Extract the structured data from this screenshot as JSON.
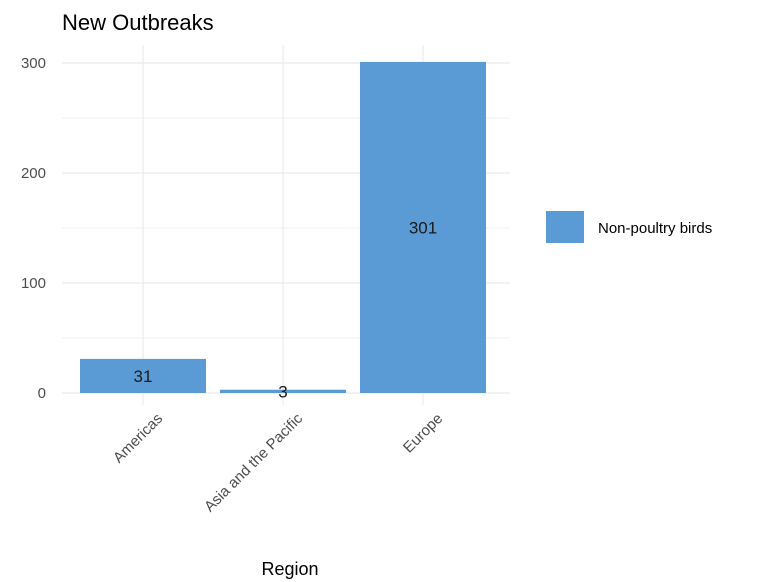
{
  "chart_data": {
    "type": "bar",
    "title": "New Outbreaks",
    "xlabel": "Region",
    "ylabel": "",
    "categories": [
      "Americas",
      "Asia and the Pacific",
      "Europe"
    ],
    "series": [
      {
        "name": "Non-poultry birds",
        "values": [
          31,
          3,
          301
        ],
        "color": "#5b9bd5"
      }
    ],
    "data_labels": [
      "31",
      "3",
      "301"
    ],
    "ylim": [
      0,
      310
    ],
    "yticks": [
      0,
      100,
      200,
      300
    ],
    "grid": true,
    "legend_position": "right"
  }
}
